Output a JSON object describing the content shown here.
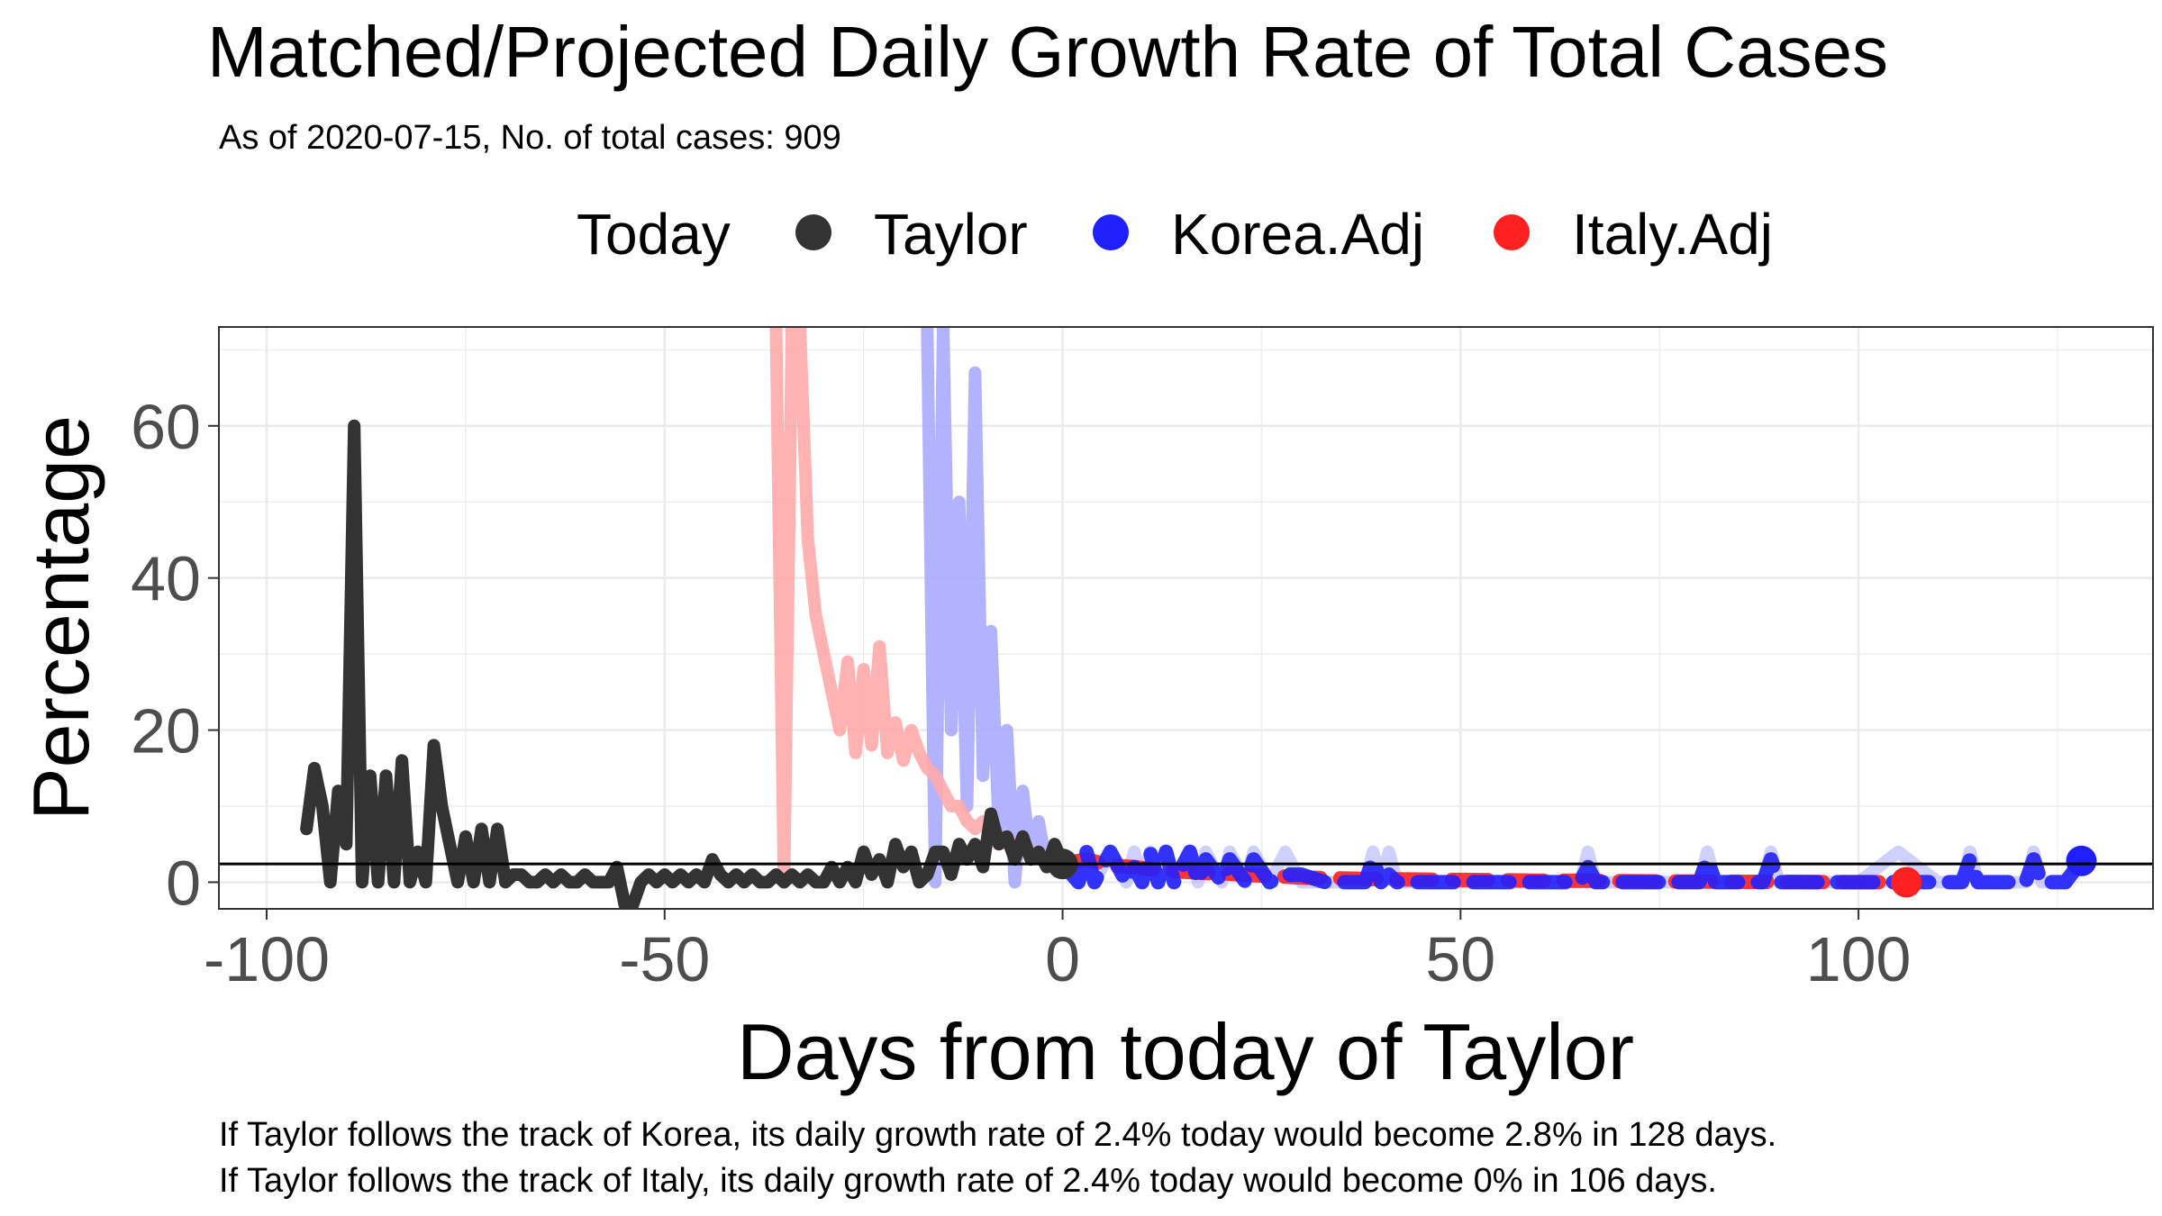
{
  "chart_data": {
    "type": "line",
    "title": "Matched/Projected Daily Growth Rate of Total Cases",
    "subtitle": "As of 2020-07-15, No. of total cases: 909",
    "xlabel": "Days from today of Taylor",
    "ylabel": "Percentage",
    "xlim": [
      -106,
      137
    ],
    "ylim": [
      -3.5,
      73
    ],
    "x_ticks": [
      -100,
      -50,
      0,
      50,
      100
    ],
    "x_tick_labels": [
      "-100",
      "-50",
      "0",
      "50",
      "100"
    ],
    "y_ticks": [
      0,
      20,
      40,
      60
    ],
    "y_tick_labels": [
      "0",
      "20",
      "40",
      "60"
    ],
    "grid": true,
    "legend": {
      "title": "Today",
      "position": "top",
      "entries": [
        {
          "label": "Taylor",
          "color": "#333333"
        },
        {
          "label": "Korea.Adj",
          "color": "#2020ff"
        },
        {
          "label": "Italy.Adj",
          "color": "#ff2020"
        }
      ]
    },
    "hline": 2.4,
    "today_value": 2.4,
    "series": [
      {
        "name": "Taylor",
        "color": "#333333",
        "style": "solid",
        "x": [
          -95,
          -94,
          -93,
          -92,
          -91,
          -90,
          -89,
          -88,
          -87,
          -86,
          -85,
          -84,
          -83,
          -82,
          -81,
          -80,
          -79,
          -78,
          -77,
          -76,
          -75,
          -74,
          -73,
          -72,
          -71,
          -70,
          -69,
          -68,
          -67,
          -66,
          -65,
          -64,
          -63,
          -62,
          -61,
          -60,
          -59,
          -58,
          -57,
          -56,
          -55,
          -54,
          -53,
          -52,
          -51,
          -50,
          -49,
          -48,
          -47,
          -46,
          -45,
          -44,
          -43,
          -42,
          -41,
          -40,
          -39,
          -38,
          -37,
          -36,
          -35,
          -34,
          -33,
          -32,
          -31,
          -30,
          -29,
          -28,
          -27,
          -26,
          -25,
          -24,
          -23,
          -22,
          -21,
          -20,
          -19,
          -18,
          -17,
          -16,
          -15,
          -14,
          -13,
          -12,
          -11,
          -10,
          -9,
          -8,
          -7,
          -6,
          -5,
          -4,
          -3,
          -2,
          -1,
          0
        ],
        "y": [
          7,
          15,
          10,
          0,
          12,
          5,
          60,
          0,
          14,
          0,
          14,
          0,
          16,
          0,
          4,
          0,
          18,
          10,
          5,
          0,
          6,
          0,
          7,
          0,
          7,
          0,
          1,
          1,
          0,
          0,
          1,
          0,
          1,
          0,
          0,
          1,
          0,
          0,
          0,
          2,
          -3,
          -3,
          0,
          1,
          0,
          1,
          0,
          1,
          0,
          1,
          0,
          3,
          1,
          0,
          1,
          0,
          1,
          0,
          0,
          1,
          0,
          1,
          0,
          1,
          0,
          0,
          2,
          0,
          2,
          0,
          4,
          1,
          3,
          0,
          5,
          2,
          4,
          0,
          1,
          4,
          4,
          1,
          5,
          3,
          5,
          2,
          9,
          5,
          6,
          3,
          6,
          3,
          4,
          2,
          5,
          2.4
        ]
      },
      {
        "name": "Korea.Adj (matched)",
        "color": "#aaaaff",
        "style": "solid",
        "x": [
          -17,
          -16,
          -15,
          -14,
          -13,
          -12,
          -11,
          -10,
          -9,
          -8,
          -7,
          -6,
          -5,
          -4,
          -3,
          -2,
          -1,
          0
        ],
        "y": [
          73,
          0,
          73,
          20,
          50,
          10,
          67,
          14,
          33,
          7,
          20,
          0,
          12,
          3,
          8,
          2,
          5,
          3
        ]
      },
      {
        "name": "Italy.Adj (matched)",
        "color": "#ffaaaa",
        "style": "solid",
        "x": [
          -36,
          -35,
          -34,
          -33,
          -32,
          -31,
          -30,
          -29,
          -28,
          -27,
          -26,
          -25,
          -24,
          -23,
          -22,
          -21,
          -20,
          -19,
          -18,
          -17,
          -16,
          -15,
          -14,
          -13,
          -12,
          -11,
          -10,
          -9,
          -8,
          -7,
          -6,
          -5,
          -4,
          -3,
          -2,
          -1,
          0
        ],
        "y": [
          73,
          0,
          73,
          73,
          45,
          35,
          30,
          25,
          20,
          29,
          17,
          28,
          18,
          31,
          17,
          21,
          16,
          20,
          17,
          15,
          14,
          12,
          10,
          10,
          8,
          7,
          8,
          6,
          6,
          5,
          5,
          4,
          4,
          4,
          3,
          3,
          3
        ]
      },
      {
        "name": "Korea.Adj",
        "color": "#2020ff",
        "style": "dashed",
        "x": [
          0,
          2,
          3,
          4,
          6,
          8,
          9,
          10,
          11,
          12,
          13,
          14,
          16,
          17,
          18,
          20,
          21,
          23,
          24,
          26,
          28,
          30,
          33,
          36,
          38,
          39,
          40,
          41,
          42,
          45,
          50,
          55,
          60,
          65,
          66,
          67,
          70,
          75,
          79,
          80,
          81,
          82,
          85,
          88,
          89,
          90,
          91,
          92,
          95,
          100,
          105,
          110,
          113,
          114,
          115,
          118,
          121,
          122,
          123,
          126,
          128
        ],
        "y": [
          2.4,
          0,
          4,
          0,
          4,
          0,
          2,
          0,
          4,
          0,
          4,
          0,
          4,
          0,
          3,
          0,
          3,
          0,
          3,
          0,
          1,
          1,
          0,
          0,
          0,
          3,
          0,
          1,
          0,
          0,
          0,
          0,
          0,
          0,
          2,
          0,
          0,
          0,
          0,
          0,
          3,
          0,
          0,
          0,
          3,
          0,
          0,
          0,
          0,
          0,
          0,
          0,
          0,
          3,
          0,
          0,
          0,
          3,
          0,
          0,
          2.8
        ]
      },
      {
        "name": "Korea.Adj (projection band)",
        "color": "#aaaaff",
        "style": "solid",
        "x": [
          0,
          2,
          3,
          4,
          6,
          8,
          9,
          10,
          11,
          12,
          13,
          14,
          16,
          17,
          18,
          20,
          21,
          23,
          24,
          26,
          28,
          30,
          33,
          36,
          38,
          39,
          40,
          41,
          42,
          45,
          50,
          55,
          60,
          65,
          66,
          67,
          70,
          75,
          79,
          80,
          81,
          82,
          85,
          88,
          89,
          90,
          91,
          92,
          95,
          100,
          105,
          110,
          113,
          114,
          115,
          118,
          121,
          122,
          123,
          126,
          128
        ],
        "y": [
          2.4,
          0,
          4,
          0,
          4,
          0,
          4,
          0,
          4,
          0,
          4,
          0,
          4,
          0,
          4,
          0,
          4,
          0,
          4,
          0,
          4,
          0,
          0,
          0,
          0,
          4,
          0,
          4,
          0,
          0,
          0,
          0,
          0,
          0,
          4,
          0,
          0,
          0,
          0,
          0,
          4,
          0,
          0,
          0,
          4,
          0,
          0,
          0,
          0,
          0,
          4,
          0,
          0,
          4,
          0,
          0,
          0,
          4,
          0,
          0,
          2.8
        ]
      },
      {
        "name": "Italy.Adj",
        "color": "#ff2020",
        "style": "dashed",
        "x": [
          0,
          3,
          6,
          9,
          12,
          15,
          18,
          21,
          24,
          27,
          30,
          35,
          40,
          45,
          50,
          55,
          60,
          65,
          70,
          75,
          80,
          85,
          90,
          95,
          100,
          105,
          106
        ],
        "y": [
          2.4,
          3,
          2.2,
          2,
          1.6,
          1.4,
          1.2,
          1.1,
          0.9,
          0.8,
          0.6,
          0.5,
          0.4,
          0.35,
          0.3,
          0.25,
          0.2,
          0.2,
          0.15,
          0.1,
          0.1,
          0.05,
          0.05,
          0.02,
          0,
          0,
          0
        ]
      }
    ],
    "endpoints": [
      {
        "name": "Taylor",
        "x": 0,
        "y": 2.4,
        "color": "#333333"
      },
      {
        "name": "Korea.Adj",
        "x": 128,
        "y": 2.8,
        "color": "#2020ff"
      },
      {
        "name": "Italy.Adj",
        "x": 106,
        "y": 0,
        "color": "#ff2020"
      }
    ],
    "captions": [
      "If Taylor follows the track of Korea, its daily growth rate of 2.4% today would become 2.8% in 128 days.",
      "If Taylor follows the track of Italy, its daily growth rate of 2.4% today would become 0% in 106 days."
    ]
  }
}
